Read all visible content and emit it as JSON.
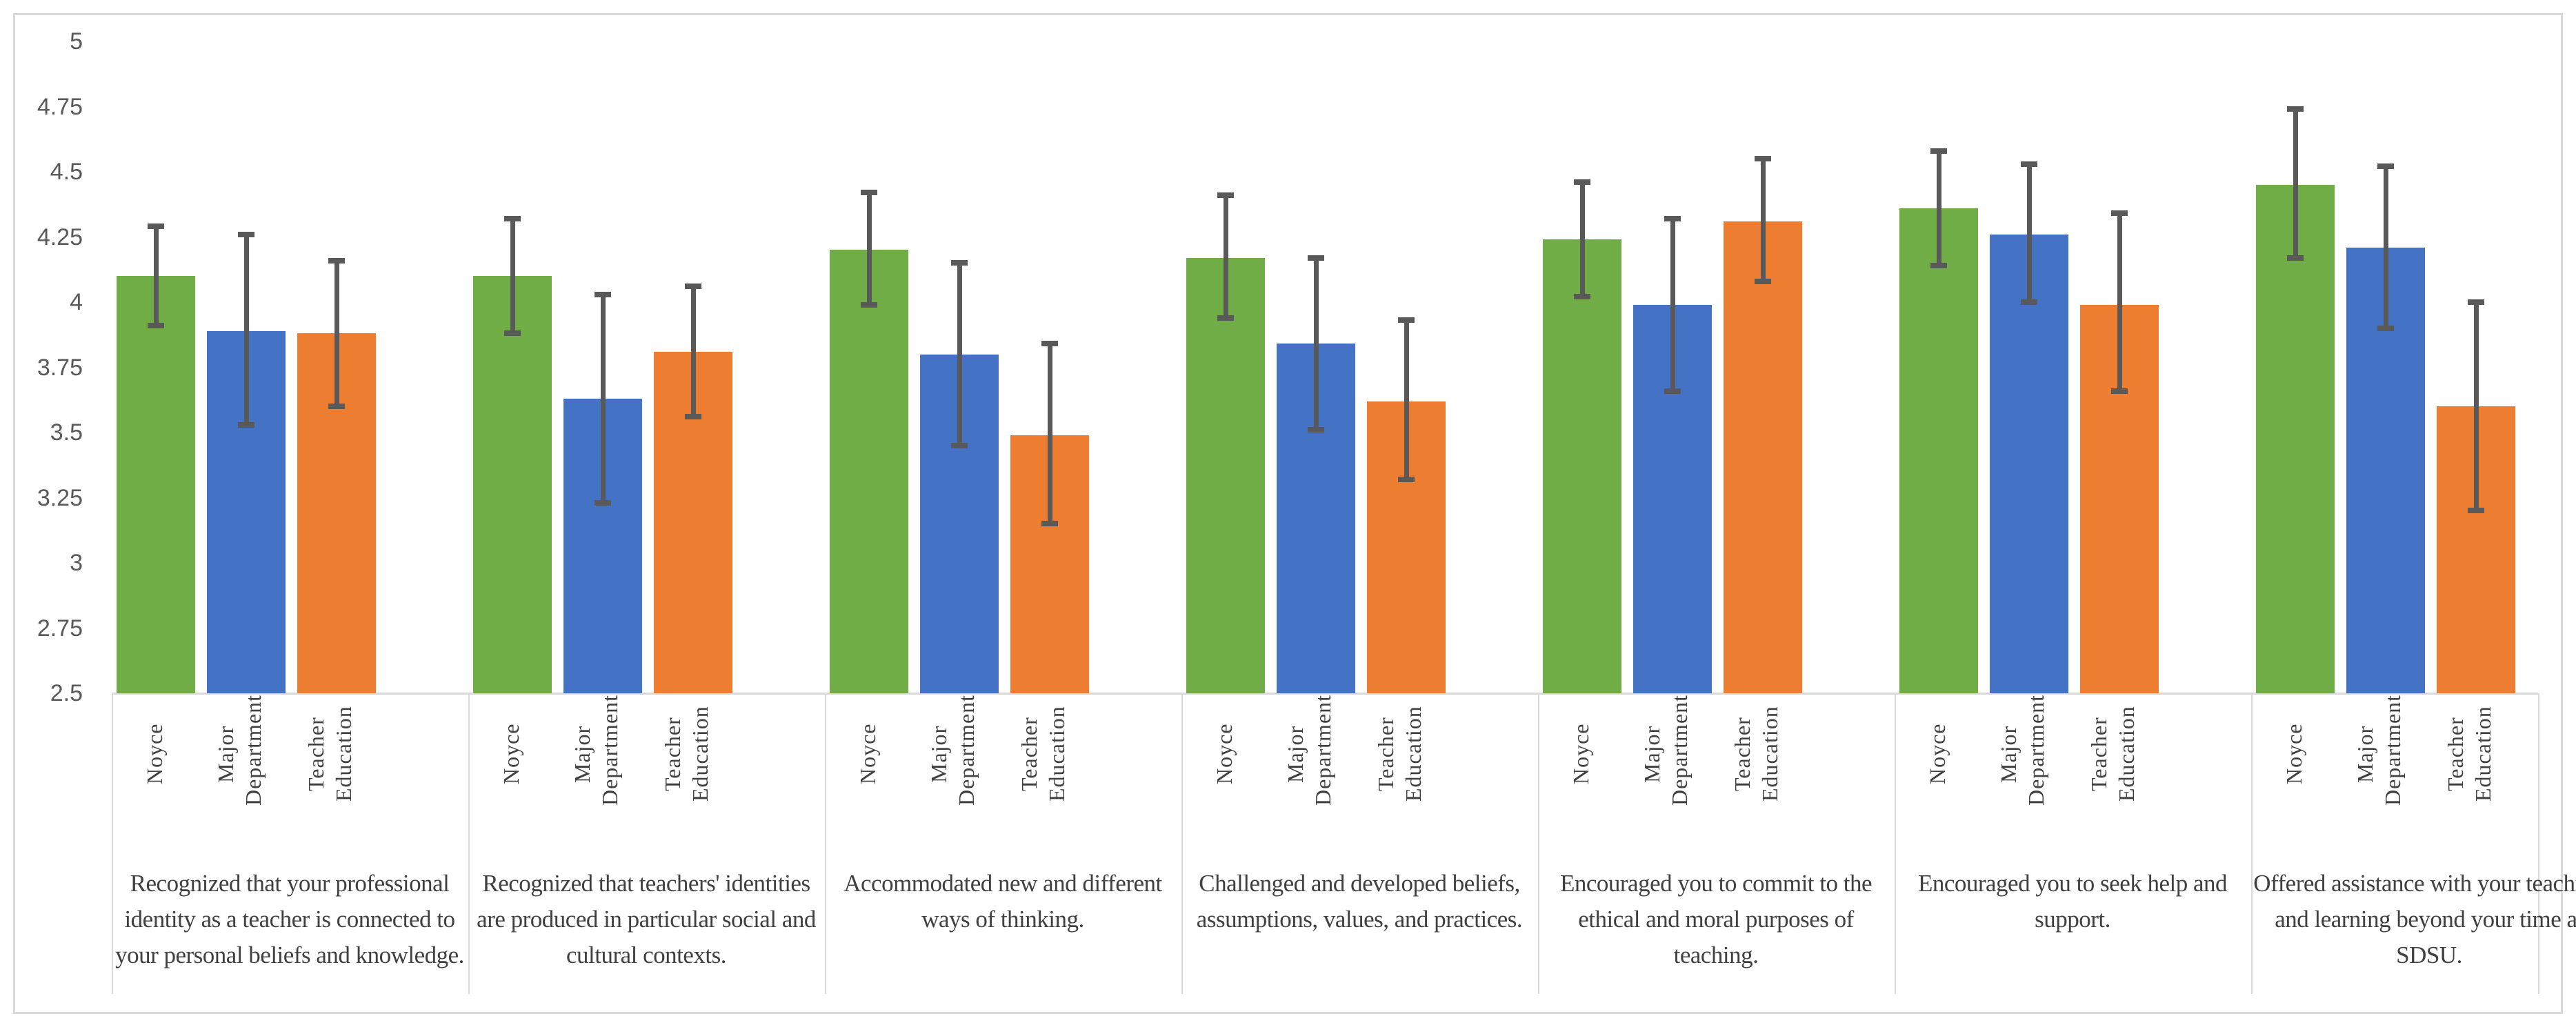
{
  "chart_data": {
    "type": "bar",
    "title": "",
    "xlabel": "",
    "ylabel": "",
    "ylim": [
      2.5,
      5
    ],
    "yticks": [
      "2.5",
      "2.75",
      "3",
      "3.25",
      "3.5",
      "3.75",
      "4",
      "4.25",
      "4.5",
      "4.75",
      "5"
    ],
    "grid": false,
    "legend": "none (series names shown as rotated axis labels)",
    "categories": [
      "Recognized that your professional identity as a teacher is connected to your personal beliefs and knowledge.",
      "Recognized that teachers' identities are produced in particular social and cultural contexts.",
      "Accommodated new and different ways of thinking.",
      "Challenged and developed beliefs, assumptions, values, and practices.",
      "Encouraged you to commit to the ethical and moral purposes of teaching.",
      "Encouraged you to seek help and support.",
      "Offered assistance with your teaching and learning beyond your time at SDSU."
    ],
    "series": [
      {
        "name": "Noyce",
        "color": "#70AD47",
        "values": [
          4.1,
          4.1,
          4.2,
          4.17,
          4.24,
          4.36,
          4.45
        ],
        "err_low": [
          3.91,
          3.88,
          3.99,
          3.94,
          4.02,
          4.14,
          4.17
        ],
        "err_high": [
          4.29,
          4.32,
          4.42,
          4.41,
          4.46,
          4.58,
          4.74
        ]
      },
      {
        "name": "Major Department",
        "color": "#4472C4",
        "values": [
          3.89,
          3.63,
          3.8,
          3.84,
          3.99,
          4.26,
          4.21
        ],
        "err_low": [
          3.53,
          3.23,
          3.45,
          3.51,
          3.66,
          4.0,
          3.9
        ],
        "err_high": [
          4.26,
          4.03,
          4.15,
          4.17,
          4.32,
          4.53,
          4.52
        ]
      },
      {
        "name": "Teacher Education",
        "color": "#ED7D31",
        "values": [
          3.88,
          3.81,
          3.49,
          3.62,
          4.31,
          3.99,
          3.6
        ],
        "err_low": [
          3.6,
          3.56,
          3.15,
          3.32,
          4.08,
          3.66,
          3.2
        ],
        "err_high": [
          4.16,
          4.06,
          3.84,
          3.93,
          4.55,
          4.34,
          4.0
        ]
      }
    ]
  }
}
